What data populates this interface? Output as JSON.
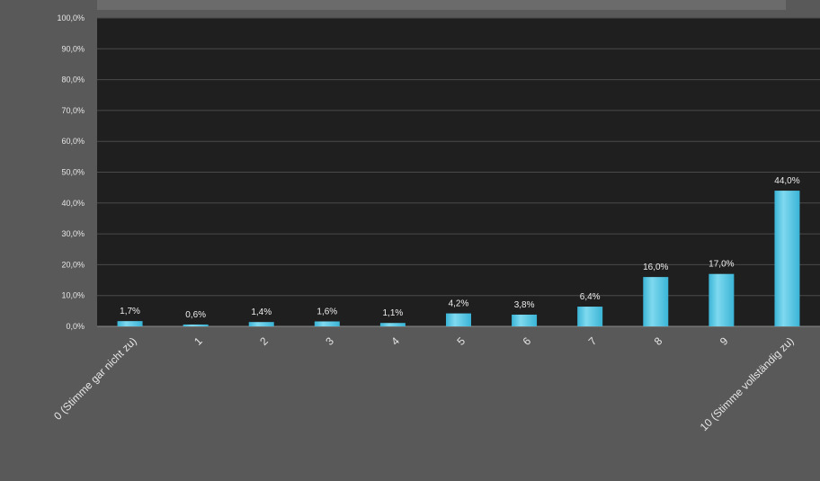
{
  "chart_data": {
    "type": "bar",
    "title": "",
    "categories": [
      "0 (Stimme gar nicht zu)",
      "1",
      "2",
      "3",
      "4",
      "5",
      "6",
      "7",
      "8",
      "9",
      "10 (Stimme vollständig zu)"
    ],
    "values": [
      1.7,
      0.6,
      1.4,
      1.6,
      1.1,
      4.2,
      3.8,
      6.4,
      16.0,
      17.0,
      44.0
    ],
    "value_labels": [
      "1,7%",
      "0,6%",
      "1,4%",
      "1,6%",
      "1,1%",
      "4,2%",
      "3,8%",
      "6,4%",
      "16,0%",
      "17,0%",
      "44,0%"
    ],
    "y_ticks": [
      0,
      10,
      20,
      30,
      40,
      50,
      60,
      70,
      80,
      90,
      100
    ],
    "y_tick_labels": [
      "0,0%",
      "10,0%",
      "20,0%",
      "30,0%",
      "40,0%",
      "50,0%",
      "60,0%",
      "70,0%",
      "80,0%",
      "90,0%",
      "100,0%"
    ],
    "ylim": [
      0,
      100
    ],
    "xlabel": "",
    "ylabel": "",
    "grid": true,
    "colors": {
      "bar": "#3ab4d6",
      "bar_highlight": "#7fd9ef",
      "plot_background": "#1f1f1f",
      "figure_background": "#595959",
      "title_background": "#6b6b6b",
      "gridline": "#4a4a4a"
    }
  }
}
